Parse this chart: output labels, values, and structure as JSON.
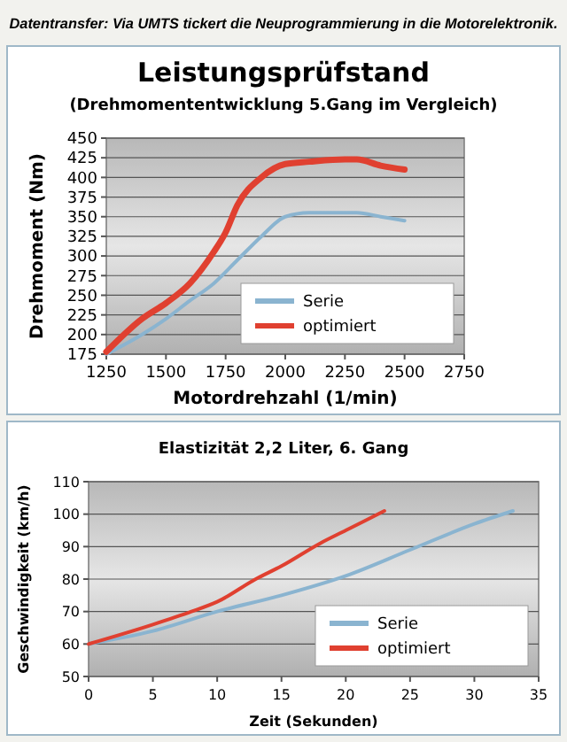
{
  "chart_data": [
    {
      "type": "line",
      "title": "Leistungsprüfstand",
      "subtitle": "(Drehmomententwicklung 5.Gang im Vergleich)",
      "xlabel": "Motordrehzahl (1/min)",
      "ylabel": "Drehmoment (Nm)",
      "annotations": [
        "Datentransfer: Via UMTS tickert die Neuprogrammierung in die Motorelektronik."
      ],
      "xlim": [
        1250,
        2750
      ],
      "xticks": [
        1250,
        1500,
        1750,
        2000,
        2250,
        2500,
        2750
      ],
      "ylim": [
        175,
        450
      ],
      "yticks": [
        175,
        200,
        225,
        250,
        275,
        300,
        325,
        350,
        375,
        400,
        425,
        450
      ],
      "grid": "y",
      "legend": "bottom right",
      "marker": "none",
      "line_style": "solid",
      "series": [
        {
          "name": "Serie",
          "color": "#8ab4d0",
          "x": [
            1250,
            1400,
            1500,
            1600,
            1700,
            1800,
            1900,
            2000,
            2100,
            2250,
            2300,
            2400,
            2500
          ],
          "values": [
            175,
            200,
            220,
            243,
            265,
            295,
            325,
            350,
            355,
            355,
            355,
            350,
            345
          ]
        },
        {
          "name": "optimiert",
          "color": "#e04030",
          "x": [
            1250,
            1400,
            1500,
            1600,
            1700,
            1750,
            1800,
            1900,
            2000,
            2100,
            2250,
            2300,
            2400,
            2500
          ],
          "values": [
            178,
            220,
            240,
            265,
            305,
            330,
            365,
            400,
            417,
            420,
            423,
            423,
            415,
            410
          ]
        }
      ]
    },
    {
      "type": "line",
      "title": "Elastizität 2,2 Liter, 6. Gang",
      "xlabel": "Zeit (Sekunden)",
      "ylabel": "Geschwindigkeit (km/h)",
      "xlim": [
        0,
        35
      ],
      "xticks": [
        0,
        5,
        10,
        15,
        20,
        25,
        30,
        35
      ],
      "ylim": [
        50,
        110
      ],
      "yticks": [
        50,
        60,
        70,
        80,
        90,
        100,
        110
      ],
      "grid": "y",
      "legend": "bottom right",
      "marker": "none",
      "line_style": "solid",
      "series": [
        {
          "name": "Serie",
          "color": "#8ab4d0",
          "x": [
            0,
            5,
            10,
            15,
            20,
            25,
            30,
            33
          ],
          "values": [
            60,
            64,
            70,
            75,
            81,
            89,
            97,
            101
          ]
        },
        {
          "name": "optimiert",
          "color": "#e04030",
          "x": [
            0,
            5,
            8,
            10,
            13,
            15,
            18,
            20,
            23
          ],
          "values": [
            60,
            66,
            70,
            73,
            80,
            84,
            91,
            95,
            101
          ]
        }
      ]
    }
  ]
}
